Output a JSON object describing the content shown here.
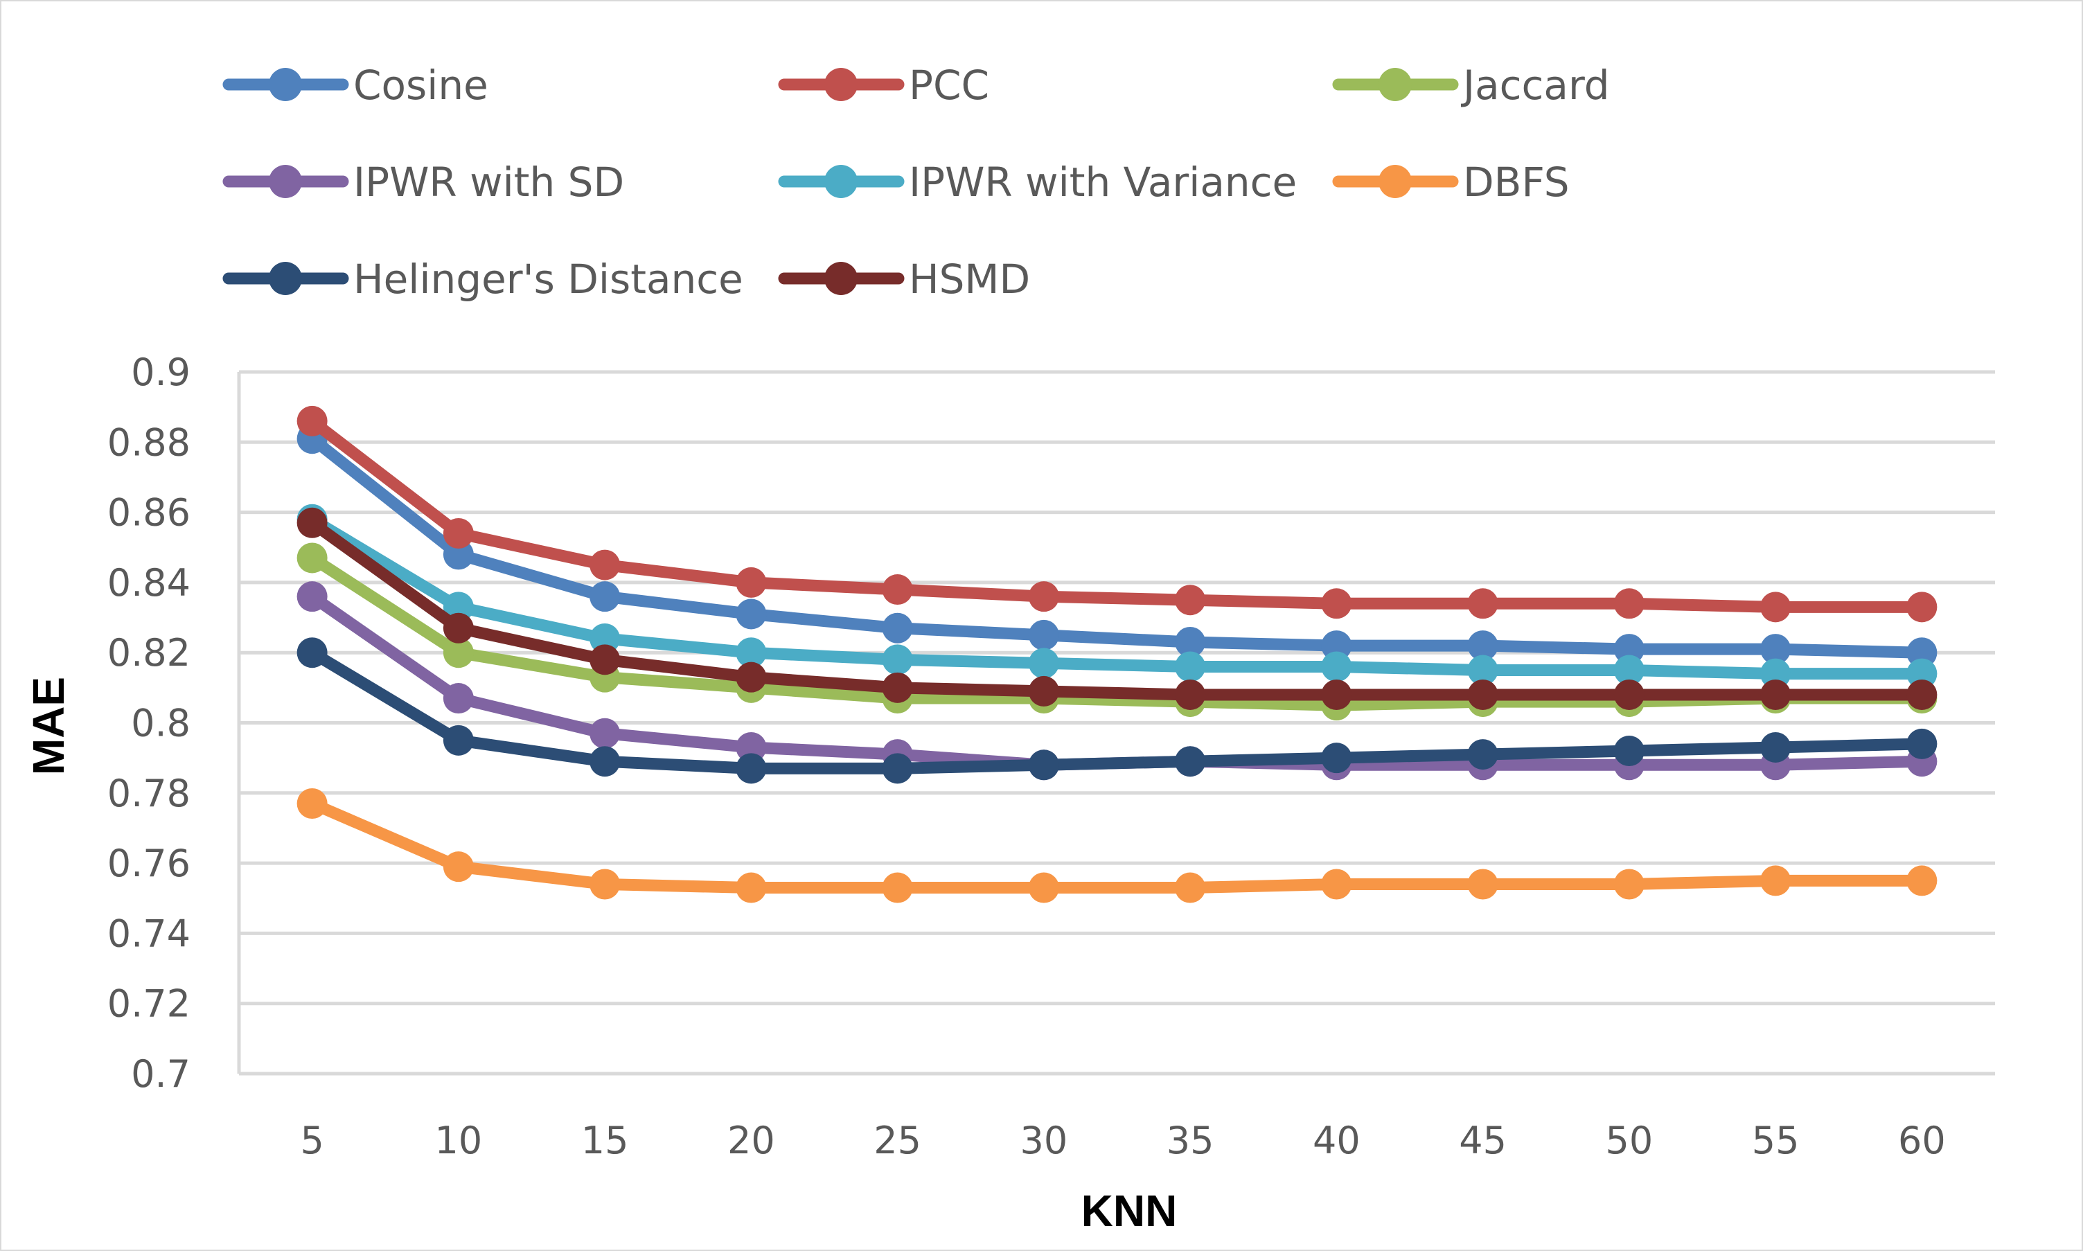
{
  "chart_data": {
    "type": "line",
    "title": "",
    "xlabel": "KNN",
    "ylabel": "MAE",
    "x": [
      5,
      10,
      15,
      20,
      25,
      30,
      35,
      40,
      45,
      50,
      55,
      60
    ],
    "ylim": [
      0.7,
      0.9
    ],
    "yticks": [
      "0.9",
      "0.88",
      "0.86",
      "0.84",
      "0.82",
      "0.8",
      "0.78",
      "0.76",
      "0.74",
      "0.72",
      "0.7"
    ],
    "ytick_values": [
      0.9,
      0.88,
      0.86,
      0.84,
      0.82,
      0.8,
      0.78,
      0.76,
      0.74,
      0.72,
      0.7
    ],
    "grid": true,
    "legend_position": "top",
    "series": [
      {
        "name": "Cosine",
        "color": "#4f81bd",
        "values": [
          0.881,
          0.848,
          0.836,
          0.831,
          0.827,
          0.825,
          0.823,
          0.822,
          0.822,
          0.821,
          0.821,
          0.82
        ]
      },
      {
        "name": "PCC",
        "color": "#c0504d",
        "values": [
          0.886,
          0.854,
          0.845,
          0.84,
          0.838,
          0.836,
          0.835,
          0.834,
          0.834,
          0.834,
          0.833,
          0.833
        ]
      },
      {
        "name": "Jaccard",
        "color": "#9bbb59",
        "values": [
          0.847,
          0.82,
          0.813,
          0.81,
          0.807,
          0.807,
          0.806,
          0.805,
          0.806,
          0.806,
          0.807,
          0.807
        ]
      },
      {
        "name": "IPWR with SD",
        "color": "#8064a2",
        "values": [
          0.836,
          0.807,
          0.797,
          0.793,
          0.791,
          0.788,
          0.789,
          0.788,
          0.788,
          0.788,
          0.788,
          0.789
        ]
      },
      {
        "name": "IPWR with Variance",
        "color": "#4bacc6",
        "values": [
          0.858,
          0.833,
          0.824,
          0.82,
          0.818,
          0.817,
          0.816,
          0.816,
          0.815,
          0.815,
          0.814,
          0.814
        ]
      },
      {
        "name": "DBFS",
        "color": "#f79646",
        "values": [
          0.777,
          0.759,
          0.754,
          0.753,
          0.753,
          0.753,
          0.753,
          0.754,
          0.754,
          0.754,
          0.755,
          0.755
        ]
      },
      {
        "name": "Helinger's Distance",
        "color": "#2c4d75",
        "values": [
          0.82,
          0.795,
          0.789,
          0.787,
          0.787,
          0.788,
          0.789,
          0.79,
          0.791,
          0.792,
          0.793,
          0.794
        ]
      },
      {
        "name": "HSMD",
        "color": "#772c2a",
        "values": [
          0.857,
          0.827,
          0.818,
          0.813,
          0.81,
          0.809,
          0.808,
          0.808,
          0.808,
          0.808,
          0.808,
          0.808
        ]
      }
    ]
  }
}
